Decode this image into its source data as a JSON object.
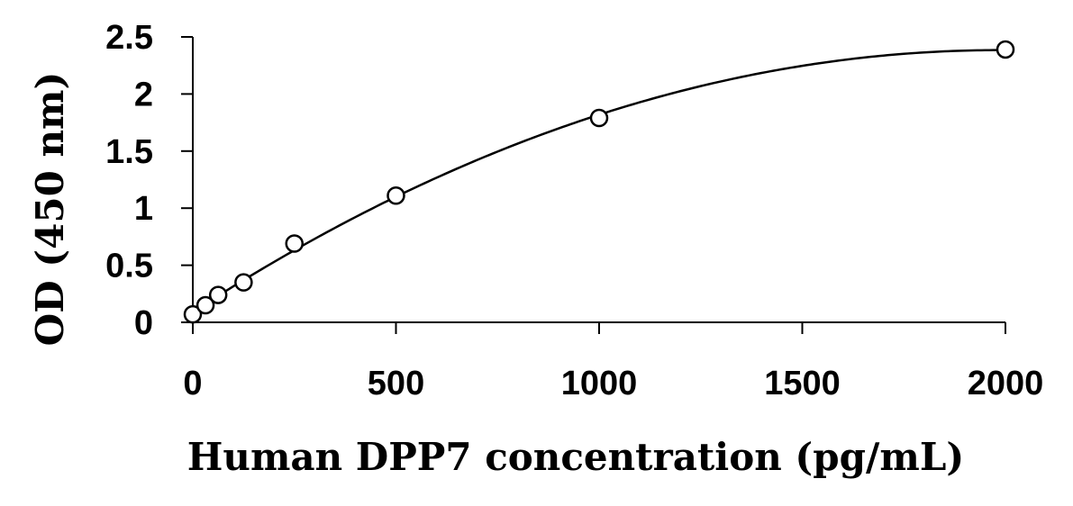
{
  "chart_data": {
    "type": "scatter",
    "title": "",
    "xlabel": "Human DPP7 concentration (pg/mL)",
    "ylabel": "OD (450 nm)",
    "xlim": [
      0,
      2000
    ],
    "ylim": [
      0,
      2.5
    ],
    "xticks": [
      0,
      500,
      1000,
      1500,
      2000
    ],
    "xtick_labels": [
      "0",
      "500",
      "1000",
      "1500",
      "2000"
    ],
    "yticks": [
      0,
      0.5,
      1,
      1.5,
      2,
      2.5
    ],
    "ytick_labels": [
      "0",
      "0.5",
      "1",
      "1.5",
      "2",
      "2.5"
    ],
    "grid": false,
    "legend": "none",
    "series": [
      {
        "marker": "open-circle",
        "fit_line": "smooth",
        "x": [
          0,
          31.25,
          62.5,
          125,
          250,
          500,
          1000,
          2000
        ],
        "y": [
          0.07,
          0.15,
          0.24,
          0.35,
          0.69,
          1.11,
          1.79,
          2.39
        ]
      }
    ],
    "colors": {
      "line": "#000000",
      "marker_fill": "#ffffff",
      "marker_stroke": "#000000"
    }
  }
}
